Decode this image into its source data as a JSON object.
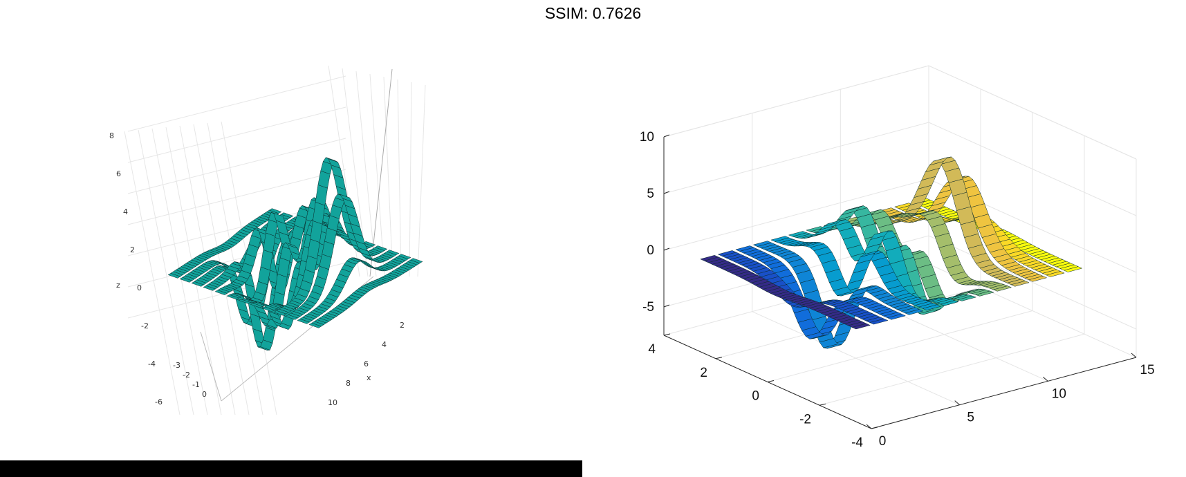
{
  "header": {
    "title": "SSIM: 0.7626"
  },
  "chart_data": [
    {
      "type": "surface",
      "title": "",
      "xlabel": "x",
      "ylabel": "",
      "zlabel": "z",
      "z_ticks": [
        "8",
        "6",
        "4",
        "2",
        "0",
        "-2",
        "-4",
        "-6"
      ],
      "x_ticks": [
        "2",
        "4",
        "6",
        "8",
        "10"
      ],
      "y_ticks": [
        "-3",
        "-2",
        "-1",
        "0"
      ],
      "colormap": "single",
      "color": "#12a39b",
      "ribbon_width": 0.4,
      "num_ribbons": 13
    },
    {
      "type": "surface",
      "title": "",
      "xlabel": "",
      "ylabel": "",
      "z_ticks": [
        "10",
        "5",
        "0",
        "-5"
      ],
      "x_ticks": [
        "0",
        "5",
        "10",
        "15"
      ],
      "y_ticks": [
        "4",
        "2",
        "0",
        "-2",
        "-4"
      ],
      "xlim": [
        0,
        15
      ],
      "ylim": [
        -4,
        4
      ],
      "zlim": [
        -7.5,
        10
      ],
      "colormap": "parula",
      "num_ribbons": 13
    }
  ]
}
